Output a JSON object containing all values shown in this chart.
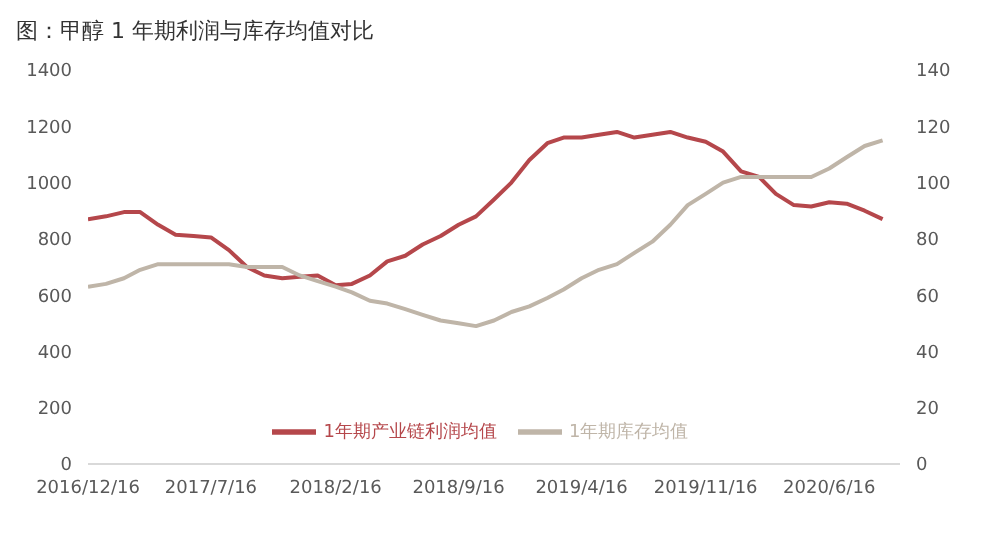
{
  "chart_data": {
    "type": "line",
    "title": "图：甲醇 1 年期利润与库存均值对比",
    "x": [
      "2016-12-16",
      "2017-01-16",
      "2017-02-16",
      "2017-03-16",
      "2017-04-16",
      "2017-05-16",
      "2017-06-16",
      "2017-07-16",
      "2017-08-16",
      "2017-09-16",
      "2017-10-16",
      "2017-11-16",
      "2017-12-16",
      "2018-01-16",
      "2018-02-16",
      "2018-03-16",
      "2018-04-16",
      "2018-05-16",
      "2018-06-16",
      "2018-07-16",
      "2018-08-16",
      "2018-09-16",
      "2018-10-16",
      "2018-11-16",
      "2018-12-16",
      "2019-01-16",
      "2019-02-16",
      "2019-03-16",
      "2019-04-16",
      "2019-05-16",
      "2019-06-16",
      "2019-07-16",
      "2019-08-16",
      "2019-09-16",
      "2019-10-16",
      "2019-11-16",
      "2019-12-16",
      "2020-01-16",
      "2020-02-16",
      "2020-03-16",
      "2020-04-16",
      "2020-05-16",
      "2020-06-16",
      "2020-07-16",
      "2020-08-16",
      "2020-09-16"
    ],
    "series": [
      {
        "name": "1年期产业链利润均值",
        "color": "#b5474b",
        "values": [
          870,
          880,
          895,
          895,
          850,
          815,
          810,
          805,
          760,
          700,
          670,
          660,
          665,
          670,
          635,
          640,
          670,
          720,
          740,
          780,
          810,
          850,
          880,
          940,
          1000,
          1080,
          1140,
          1160,
          1160,
          1170,
          1180,
          1160,
          1170,
          1180,
          1160,
          1145,
          1110,
          1040,
          1020,
          960,
          920,
          915,
          930,
          925,
          900,
          870
        ]
      },
      {
        "name": "1年期库存均值",
        "color": "#bfb5a8",
        "axis": "y2",
        "values": [
          63,
          64,
          66,
          69,
          71,
          71,
          71,
          71,
          71,
          70,
          70,
          70,
          67,
          65,
          63,
          61,
          58,
          57,
          55,
          53,
          51,
          50,
          49,
          51,
          54,
          56,
          59,
          62,
          66,
          69,
          71,
          75,
          79,
          85,
          92,
          96,
          100,
          102,
          102,
          102,
          102,
          102,
          105,
          109,
          113,
          115
        ]
      }
    ],
    "xlim": [
      "2016-12-16",
      "2020-10-16"
    ],
    "xticks": [
      {
        "value": "2016-12-16",
        "label": "2016/12/16"
      },
      {
        "value": "2017-07-16",
        "label": "2017/7/16"
      },
      {
        "value": "2018-02-16",
        "label": "2018/2/16"
      },
      {
        "value": "2018-09-16",
        "label": "2018/9/16"
      },
      {
        "value": "2019-04-16",
        "label": "2019/4/16"
      },
      {
        "value": "2019-11-16",
        "label": "2019/11/16"
      },
      {
        "value": "2020-06-16",
        "label": "2020/6/16"
      }
    ],
    "ylim": [
      0,
      1400
    ],
    "yticks": [
      0,
      200,
      400,
      600,
      800,
      1000,
      1200,
      1400
    ],
    "y2lim": [
      0,
      140
    ],
    "y2ticks": [
      0,
      20,
      40,
      60,
      80,
      100,
      120,
      140
    ],
    "legend": "bottom",
    "marker": "none",
    "line_style": "solid"
  }
}
